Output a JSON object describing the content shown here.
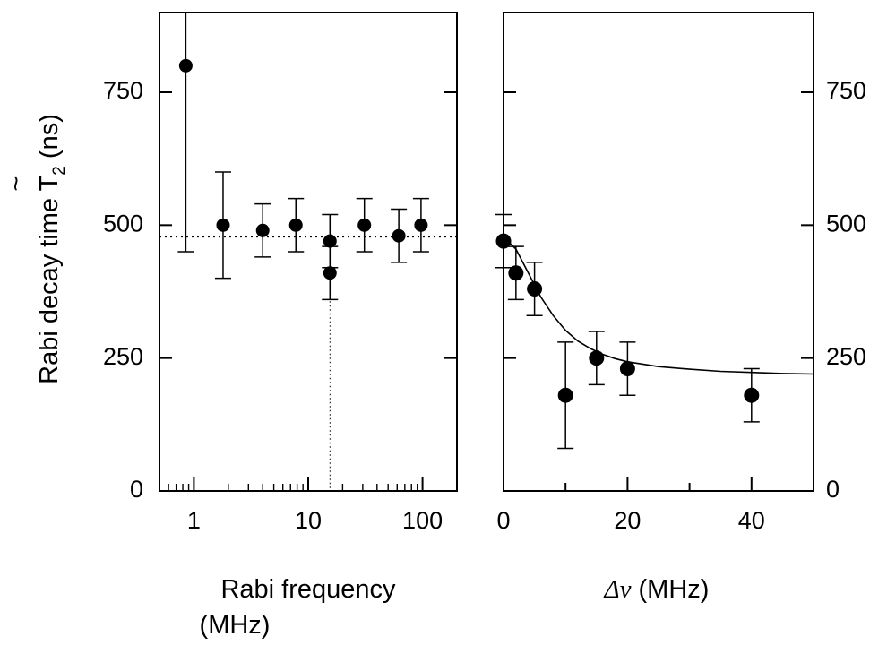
{
  "chart_data": [
    {
      "type": "scatter",
      "name": "left-panel",
      "xscale": "log",
      "xlim": [
        0.5,
        200
      ],
      "ylim": [
        0,
        900
      ],
      "xticks": [
        {
          "value": 1,
          "label": "1"
        },
        {
          "value": 10,
          "label": "10"
        },
        {
          "value": 100,
          "label": "100"
        }
      ],
      "yticks": [
        {
          "value": 0,
          "label": "0"
        },
        {
          "value": 250,
          "label": "250"
        },
        {
          "value": 500,
          "label": "500"
        },
        {
          "value": 750,
          "label": "750"
        }
      ],
      "ylabel": "Rabi decay time T̃₂ (ns)",
      "ylabel_main": "Rabi decay time T",
      "ylabel_sub": "2",
      "ylabel_tilde": "~",
      "ylabel_unit": " (ns)",
      "xlabel_line1": "Rabi frequency",
      "xlabel_line2": "(MHz)",
      "points": [
        {
          "x": 0.85,
          "y": 800,
          "err_low": 450,
          "err_high": 900
        },
        {
          "x": 1.8,
          "y": 500,
          "err_low": 400,
          "err_high": 600
        },
        {
          "x": 4,
          "y": 490,
          "err_low": 440,
          "err_high": 540
        },
        {
          "x": 7.8,
          "y": 500,
          "err_low": 450,
          "err_high": 550
        },
        {
          "x": 15.5,
          "y": 470,
          "err_low": 420,
          "err_high": 520
        },
        {
          "x": 15.5,
          "y": 410,
          "err_low": 360,
          "err_high": 460
        },
        {
          "x": 31,
          "y": 500,
          "err_low": 450,
          "err_high": 550
        },
        {
          "x": 62,
          "y": 480,
          "err_low": 430,
          "err_high": 530
        },
        {
          "x": 97,
          "y": 500,
          "err_low": 450,
          "err_high": 550
        }
      ],
      "reference_hline": {
        "y": 478,
        "style": "dotted"
      },
      "reference_vline": {
        "x": 15.5,
        "y_to": 410,
        "style": "dotted"
      }
    },
    {
      "type": "scatter",
      "name": "right-panel",
      "xscale": "linear",
      "xlim": [
        0,
        50
      ],
      "ylim": [
        0,
        900
      ],
      "xticks": [
        {
          "value": 0,
          "label": "0"
        },
        {
          "value": 20,
          "label": "20"
        },
        {
          "value": 40,
          "label": "40"
        }
      ],
      "yticks_right": [
        {
          "value": 0,
          "label": "0"
        },
        {
          "value": 250,
          "label": "250"
        },
        {
          "value": 500,
          "label": "500"
        },
        {
          "value": 750,
          "label": "750"
        }
      ],
      "xlabel_greek": "Δν",
      "xlabel_unit": " (MHz)",
      "points": [
        {
          "x": 0,
          "y": 470,
          "err_low": 420,
          "err_high": 520
        },
        {
          "x": 2,
          "y": 410,
          "err_low": 360,
          "err_high": 460
        },
        {
          "x": 5,
          "y": 380,
          "err_low": 330,
          "err_high": 430
        },
        {
          "x": 10,
          "y": 180,
          "err_low": 80,
          "err_high": 280
        },
        {
          "x": 15,
          "y": 250,
          "err_low": 200,
          "err_high": 300
        },
        {
          "x": 20,
          "y": 230,
          "err_low": 180,
          "err_high": 280
        },
        {
          "x": 40,
          "y": 180,
          "err_low": 130,
          "err_high": 230
        }
      ],
      "fit_curve": {
        "x": [
          0,
          2,
          4,
          6,
          8,
          10,
          12,
          14,
          16,
          18,
          20,
          25,
          30,
          35,
          40,
          45,
          50
        ],
        "y": [
          478,
          455,
          410,
          365,
          330,
          302,
          282,
          268,
          257,
          249,
          243,
          234,
          229,
          225,
          223,
          221,
          220
        ]
      }
    }
  ]
}
